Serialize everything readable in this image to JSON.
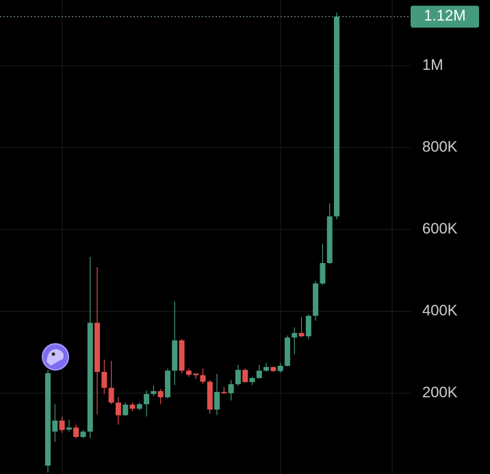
{
  "chart_data": {
    "type": "candlestick",
    "open": [
      23000,
      106000,
      133000,
      111000,
      116000,
      93000,
      106000,
      372000,
      252000,
      213000,
      177000,
      146000,
      172000,
      162000,
      173000,
      198000,
      205000,
      190000,
      255000,
      329000,
      255000,
      248000,
      244000,
      228000,
      160000,
      203000,
      200000,
      222000,
      257000,
      227000,
      237000,
      255000,
      264000,
      254000,
      267000,
      336000,
      347000,
      339000,
      389000,
      468000,
      518000,
      632000
    ],
    "high": [
      257000,
      173000,
      143000,
      135000,
      123000,
      110000,
      533000,
      508000,
      282000,
      279000,
      190000,
      177000,
      177000,
      177000,
      207000,
      218000,
      210000,
      260000,
      424000,
      332000,
      260000,
      248000,
      260000,
      232000,
      247000,
      215000,
      232000,
      269000,
      260000,
      240000,
      269000,
      274000,
      265000,
      274000,
      341000,
      361000,
      386000,
      392000,
      474000,
      565000,
      664000,
      1130000
    ],
    "low": [
      6000,
      81000,
      103000,
      106000,
      90000,
      90000,
      90000,
      148000,
      198000,
      173000,
      123000,
      145000,
      156000,
      158000,
      143000,
      193000,
      173000,
      187000,
      220000,
      249000,
      240000,
      235000,
      223000,
      150000,
      146000,
      198000,
      182000,
      218000,
      226000,
      220000,
      235000,
      252000,
      252000,
      250000,
      265000,
      295000,
      337000,
      332000,
      377000,
      464000,
      515000,
      625000
    ],
    "close": [
      249000,
      133000,
      110000,
      116000,
      93000,
      106000,
      372000,
      252000,
      213000,
      177000,
      146000,
      172000,
      162000,
      173000,
      198000,
      205000,
      190000,
      255000,
      329000,
      255000,
      245000,
      244000,
      228000,
      160000,
      203000,
      200000,
      222000,
      257000,
      227000,
      237000,
      255000,
      264000,
      254000,
      267000,
      336000,
      347000,
      339000,
      389000,
      468000,
      518000,
      632000,
      1120000
    ],
    "up_color": "#449a7c",
    "down_color": "#e2504d",
    "ylim": [
      2500,
      1160700
    ],
    "yticks": [
      {
        "value": 200000,
        "label": "200K"
      },
      {
        "value": 400000,
        "label": "400K"
      },
      {
        "value": 600000,
        "label": "600K"
      },
      {
        "value": 800000,
        "label": "800K"
      },
      {
        "value": 1000000,
        "label": "1M"
      }
    ],
    "grid": true,
    "last_price": {
      "value": 1120000,
      "label": "1.12M"
    }
  }
}
